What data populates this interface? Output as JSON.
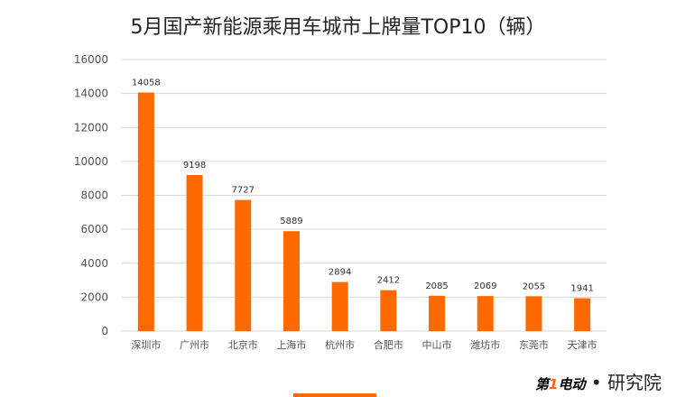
{
  "chart_data": {
    "type": "bar",
    "title": "5月国产新能源乘用车城市上牌量TOP10（辆）",
    "categories": [
      "深圳市",
      "广州市",
      "北京市",
      "上海市",
      "杭州市",
      "合肥市",
      "中山市",
      "潍坊市",
      "东莞市",
      "天津市"
    ],
    "values": [
      14058,
      9198,
      7727,
      5889,
      2894,
      2412,
      2085,
      2069,
      2055,
      1941
    ],
    "ylim": [
      0,
      16000
    ],
    "yticks": [
      0,
      2000,
      4000,
      6000,
      8000,
      10000,
      12000,
      14000,
      16000
    ],
    "grid": true,
    "bar_color": "#ff6a00"
  },
  "logo": {
    "brand": "第1电动",
    "suffix": "• 研究院"
  }
}
